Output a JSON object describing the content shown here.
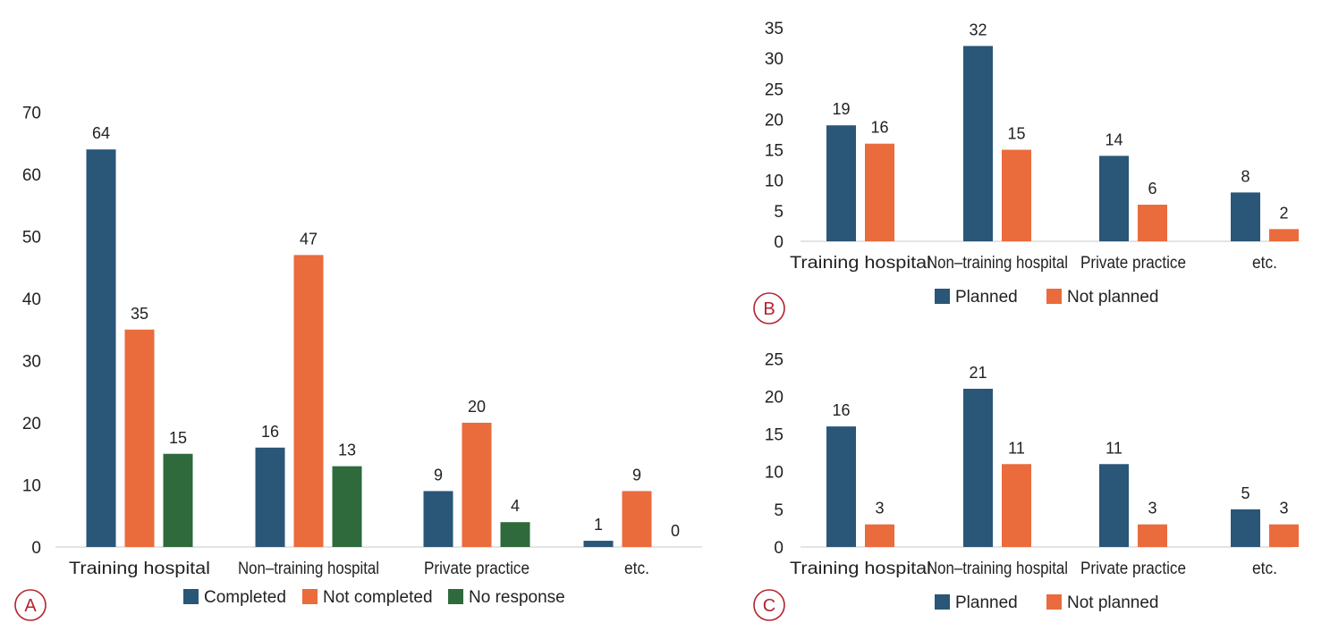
{
  "colors": {
    "completed": "#2a5677",
    "not_completed": "#ea6b3c",
    "no_response": "#2e6a3c",
    "planned": "#2a5677",
    "not_planned": "#ea6b3c",
    "panel_label": "#b5222e"
  },
  "chart_data": [
    {
      "panel": "A",
      "type": "bar",
      "title": "",
      "xlabel": "",
      "ylabel": "",
      "categories": [
        "Training hospital",
        "Non–training hospital",
        "Private practice",
        "etc."
      ],
      "series": [
        {
          "name": "Completed",
          "values": [
            64,
            16,
            9,
            1
          ],
          "color": "#2a5677"
        },
        {
          "name": "Not completed",
          "values": [
            35,
            47,
            20,
            9
          ],
          "color": "#ea6b3c"
        },
        {
          "name": "No response",
          "values": [
            15,
            13,
            4,
            0
          ],
          "color": "#2e6a3c"
        }
      ],
      "ylim": [
        0,
        70
      ],
      "yticks": [
        0,
        10,
        20,
        30,
        40,
        50,
        60,
        70
      ],
      "grid": false,
      "legend": "bottom"
    },
    {
      "panel": "B",
      "type": "bar",
      "title": "",
      "xlabel": "",
      "ylabel": "",
      "categories": [
        "Training hospital",
        "Non–training hospital",
        "Private practice",
        "etc."
      ],
      "series": [
        {
          "name": "Planned",
          "values": [
            19,
            32,
            14,
            8
          ],
          "color": "#2a5677"
        },
        {
          "name": "Not planned",
          "values": [
            16,
            15,
            6,
            2
          ],
          "color": "#ea6b3c"
        }
      ],
      "ylim": [
        0,
        35
      ],
      "yticks": [
        0,
        5,
        10,
        15,
        20,
        25,
        30,
        35
      ],
      "grid": false,
      "legend": "bottom"
    },
    {
      "panel": "C",
      "type": "bar",
      "title": "",
      "xlabel": "",
      "ylabel": "",
      "categories": [
        "Training hospital",
        "Non–training hospital",
        "Private practice",
        "etc."
      ],
      "series": [
        {
          "name": "Planned",
          "values": [
            16,
            21,
            11,
            5
          ],
          "color": "#2a5677"
        },
        {
          "name": "Not planned",
          "values": [
            3,
            11,
            3,
            3
          ],
          "color": "#ea6b3c"
        }
      ],
      "ylim": [
        0,
        25
      ],
      "yticks": [
        0,
        5,
        10,
        15,
        20,
        25
      ],
      "grid": false,
      "legend": "bottom"
    }
  ]
}
